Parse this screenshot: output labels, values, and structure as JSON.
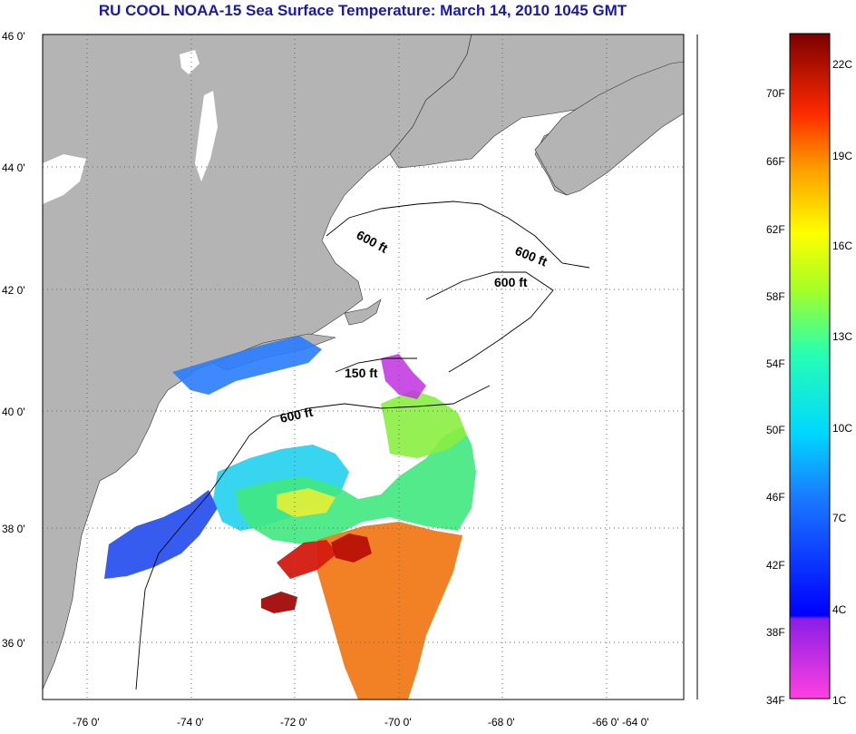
{
  "title": "RU COOL  NOAA-15  Sea Surface Temperature:  March 14, 2010 1045 GMT",
  "colors": {
    "land": "#b4b4b4",
    "water_no_data": "#ffffff",
    "grid": "#555555"
  },
  "axes": {
    "lat_labels": [
      "46 0'",
      "44 0'",
      "42 0'",
      "40 0'",
      "38 0'",
      "36 0'"
    ],
    "lon_labels": [
      "-76 0'",
      "-74 0'",
      "-72 0'",
      "-70 0'",
      "-68 0'",
      "-66 0'",
      "-64 0'"
    ]
  },
  "contours": {
    "labels": [
      "600 ft",
      "600 ft",
      "600 ft",
      "150 ft",
      "600 ft"
    ]
  },
  "colorbar": {
    "fahrenheit_labels": [
      "70F",
      "66F",
      "62F",
      "58F",
      "54F",
      "50F",
      "46F",
      "42F",
      "38F",
      "34F"
    ],
    "celsius_labels": [
      "22C",
      "19C",
      "16C",
      "13C",
      "10C",
      "7C",
      "4C",
      "1C"
    ]
  }
}
